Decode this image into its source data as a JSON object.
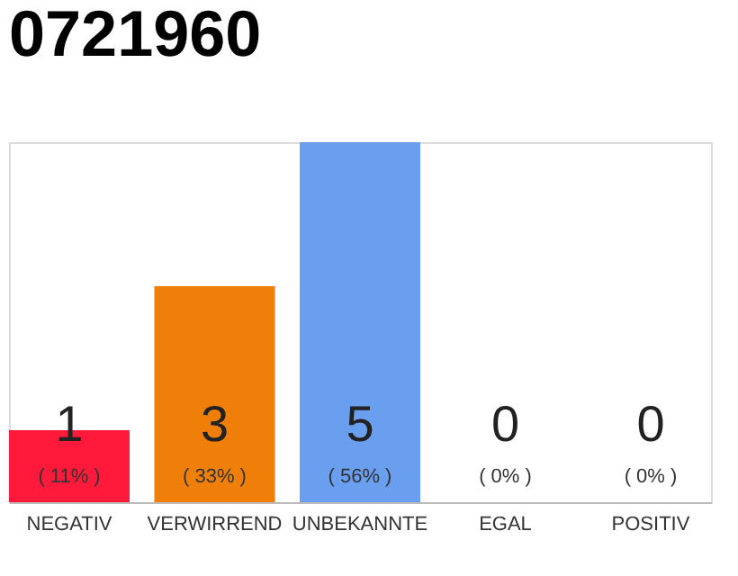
{
  "chart_data": {
    "type": "bar",
    "title": "0721960",
    "categories": [
      "NEGATIV",
      "VERWIRREND",
      "UNBEKANNTE",
      "EGAL",
      "POSITIV"
    ],
    "values": [
      1,
      3,
      5,
      0,
      0
    ],
    "colors": [
      "#ff1a3c",
      "#f07f0a",
      "#6a9ff0",
      "#9e9e9e",
      "#9e9e9e"
    ],
    "value_labels": [
      "1",
      "3",
      "5",
      "0",
      "0"
    ],
    "tick_labels": "x",
    "annotations": [
      "( 11% )",
      "( 33% )",
      "( 56% )",
      "( 0% )",
      "( 0% )"
    ]
  }
}
